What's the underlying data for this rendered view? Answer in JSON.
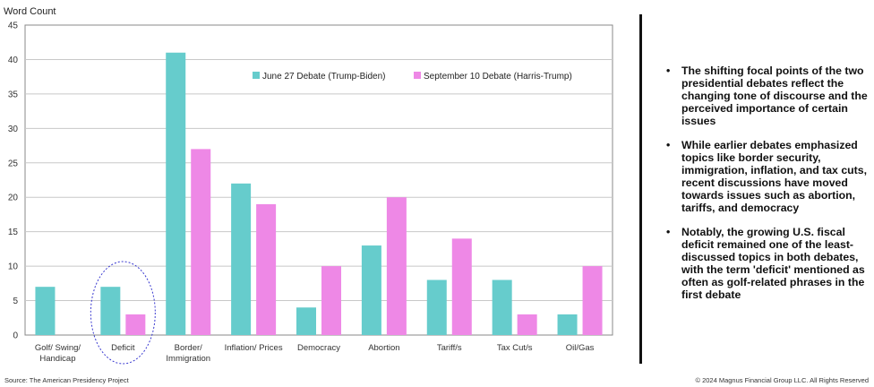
{
  "chart_data": {
    "type": "bar",
    "ylabel": "Word Count",
    "ylim": [
      0,
      45
    ],
    "yticks": [
      0,
      5,
      10,
      15,
      20,
      25,
      30,
      35,
      40,
      45
    ],
    "categories": [
      [
        "Golf/ Swing/",
        "Handicap"
      ],
      [
        "Deficit"
      ],
      [
        "Border/",
        "Immigration"
      ],
      [
        "Inflation/ Prices"
      ],
      [
        "Democracy"
      ],
      [
        "Abortion"
      ],
      [
        "Tariff/s"
      ],
      [
        "Tax Cut/s"
      ],
      [
        "Oil/Gas"
      ]
    ],
    "series": [
      {
        "name": "June 27 Debate (Trump-Biden)",
        "color": "#66cccc",
        "values": [
          7,
          7,
          41,
          22,
          4,
          13,
          8,
          8,
          3
        ]
      },
      {
        "name": "September 10 Debate (Harris-Trump)",
        "color": "#ee88e6",
        "values": [
          0,
          3,
          27,
          19,
          10,
          20,
          14,
          3,
          10
        ]
      }
    ],
    "legend_position": "top-center",
    "grid": true,
    "highlight_category": "Deficit"
  },
  "bullets": [
    "The shifting focal points of the two presidential debates reflect the changing tone of discourse and the perceived importance of certain issues",
    "While earlier debates emphasized topics like border security, immigration, inflation, and tax cuts, recent discussions have moved towards issues such as abortion, tariffs, and democracy",
    "Notably, the growing U.S. fiscal deficit remained one of the least-discussed topics in both debates, with the term 'deficit' mentioned as often as golf-related phrases in the first debate"
  ],
  "bullet_symbol": "•",
  "footer": {
    "source": "Source: The American Presidency Project",
    "copyright": "© 2024 Magnus Financial Group LLC. All Rights Reserved"
  },
  "colors": {
    "grid": "#c8c8c8",
    "axis": "#888888",
    "highlight": "#3a3ad0"
  }
}
